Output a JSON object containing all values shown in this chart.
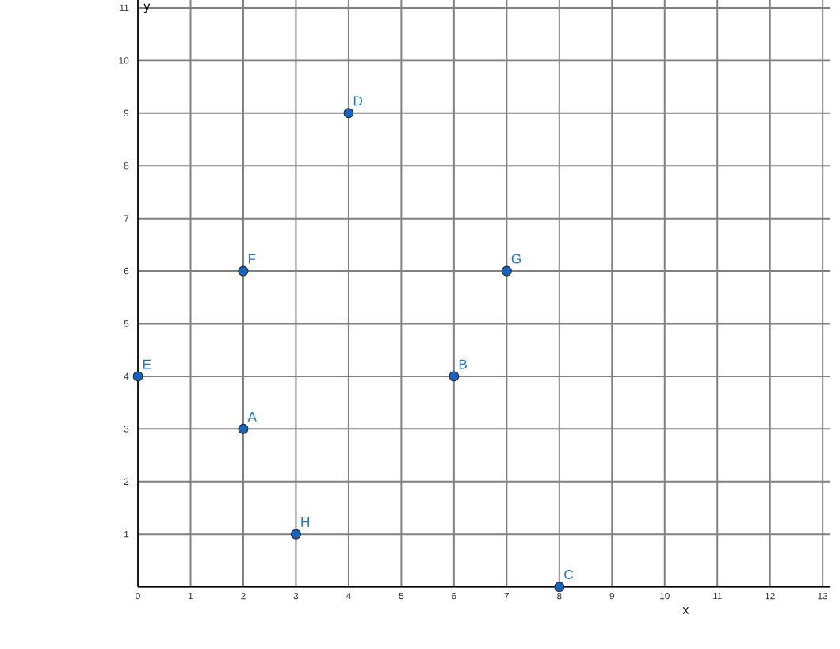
{
  "chart_data": {
    "type": "scatter",
    "xlabel": "x",
    "ylabel": "y",
    "x": [
      2,
      6,
      8,
      4,
      0,
      2,
      7,
      3
    ],
    "series": [
      {
        "color": "#1565c0",
        "values": [
          3,
          4,
          0,
          9,
          4,
          6,
          6,
          1
        ]
      }
    ],
    "marker": "circle",
    "grid": true,
    "xlim": [
      0,
      13.15
    ],
    "ylim": [
      0,
      11.15
    ],
    "xticks": [
      0,
      1,
      2,
      3,
      4,
      5,
      6,
      7,
      8,
      9,
      10,
      11,
      12,
      13
    ],
    "yticks": [
      {
        "value": 0,
        "label": null
      },
      1,
      2,
      3,
      4,
      5,
      6,
      7,
      8,
      9,
      10,
      11
    ],
    "annotations": [
      {
        "text": "A",
        "x": 2,
        "y": 3
      },
      {
        "text": "B",
        "x": 6,
        "y": 4
      },
      {
        "text": "C",
        "x": 8,
        "y": 0
      },
      {
        "text": "D",
        "x": 4,
        "y": 9
      },
      {
        "text": "E",
        "x": 0,
        "y": 4
      },
      {
        "text": "F",
        "x": 2,
        "y": 6
      },
      {
        "text": "G",
        "x": 7,
        "y": 6
      },
      {
        "text": "H",
        "x": 3,
        "y": 1
      }
    ]
  }
}
